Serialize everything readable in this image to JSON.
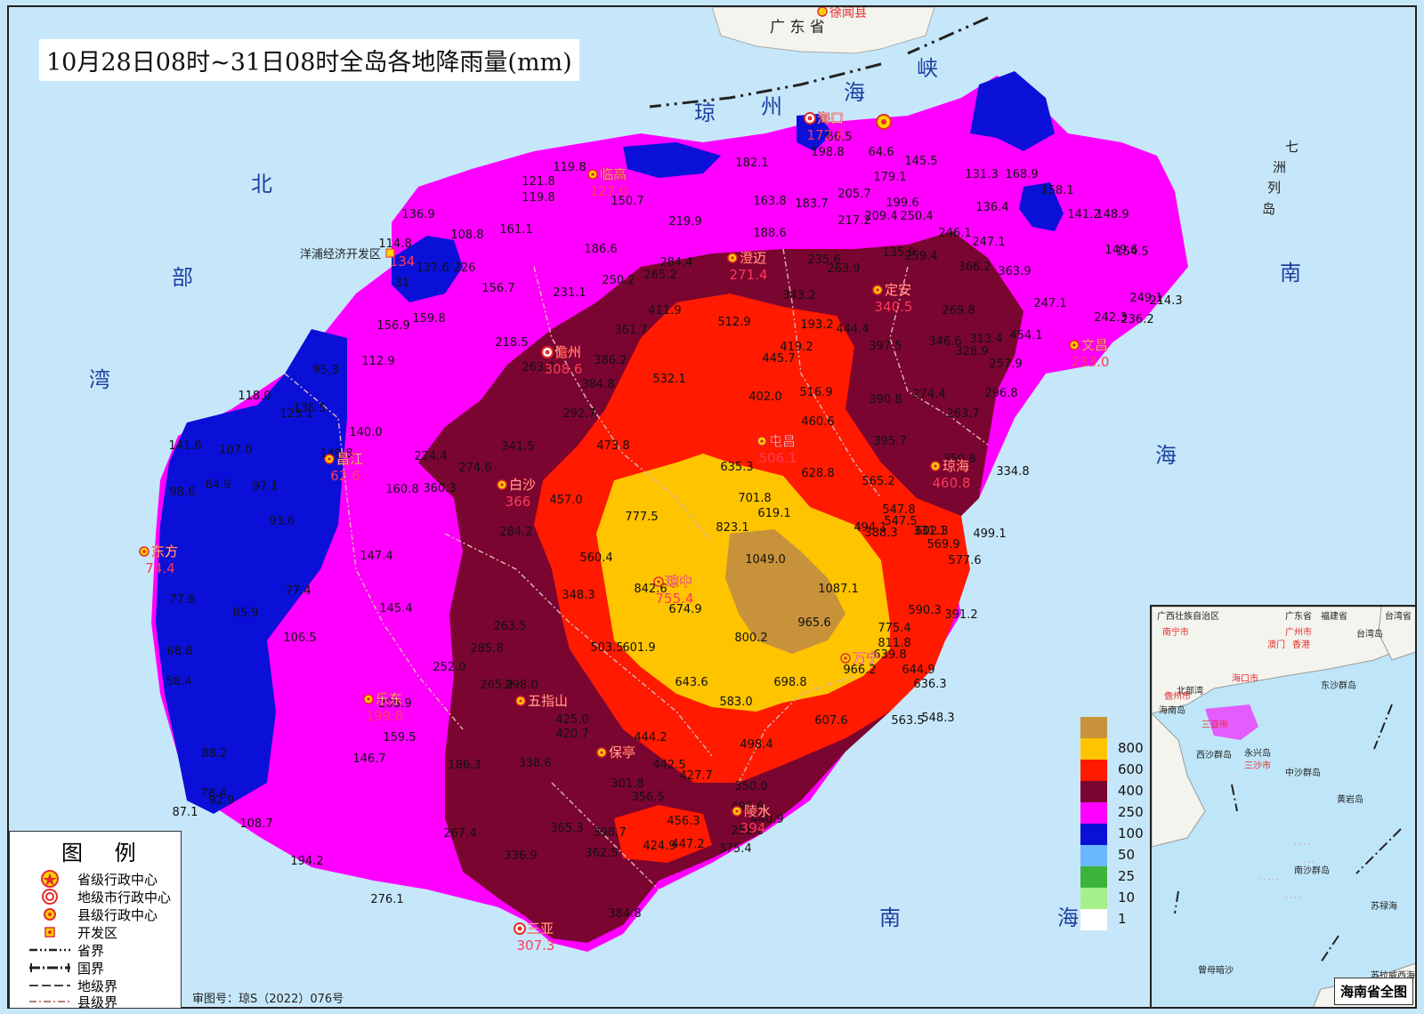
{
  "title": "10月28日08时~31日08时全岛各地降雨量(mm)",
  "approval": "审图号：琼S（2022）076号",
  "sea_labels": {
    "strait": [
      "琼",
      "州",
      "海",
      "峡"
    ],
    "gulf": [
      "北",
      "部",
      "湾"
    ],
    "south_sea": [
      "南",
      "海"
    ],
    "east_sea": [
      "南",
      "海"
    ],
    "islands": [
      "七",
      "洲",
      "列",
      "岛"
    ],
    "guangdong": "广 东 省",
    "xuwen": "徐闻县"
  },
  "cities": [
    {
      "name": "海口",
      "rain": "172.6"
    },
    {
      "name": "临高",
      "rain": "127.0"
    },
    {
      "name": "澄迈",
      "rain": "271.4"
    },
    {
      "name": "定安",
      "rain": "340.5"
    },
    {
      "name": "文昌",
      "rain": "233.0"
    },
    {
      "name": "儋州",
      "rain": "308.6"
    },
    {
      "name": "屯昌",
      "rain": "506.1"
    },
    {
      "name": "琼海",
      "rain": "460.8"
    },
    {
      "name": "白沙",
      "rain": "366"
    },
    {
      "name": "昌江",
      "rain": "62.6"
    },
    {
      "name": "东方",
      "rain": "74.4"
    },
    {
      "name": "琼中",
      "rain": "755.4"
    },
    {
      "name": "万宁",
      "rain": ""
    },
    {
      "name": "乐东",
      "rain": "199.8"
    },
    {
      "name": "五指山",
      "rain": ""
    },
    {
      "name": "保亭",
      "rain": ""
    },
    {
      "name": "陵水",
      "rain": "394"
    },
    {
      "name": "三亚",
      "rain": "307.3"
    },
    {
      "name": "洋浦经济开发区",
      "rain": "134"
    }
  ],
  "stations": [
    {
      "v": "119.8"
    },
    {
      "v": "121.8"
    },
    {
      "v": "119.8"
    },
    {
      "v": "150.7"
    },
    {
      "v": "182.1"
    },
    {
      "v": "198.8"
    },
    {
      "v": "66.5"
    },
    {
      "v": "64.6"
    },
    {
      "v": "145.5"
    },
    {
      "v": "131.3"
    },
    {
      "v": "168.9"
    },
    {
      "v": "158.1"
    },
    {
      "v": "141.2"
    },
    {
      "v": "148.9"
    },
    {
      "v": "179.1"
    },
    {
      "v": "205.7"
    },
    {
      "v": "199.6"
    },
    {
      "v": "136.4"
    },
    {
      "v": "209.4"
    },
    {
      "v": "250.4"
    },
    {
      "v": "217.2"
    },
    {
      "v": "183.7"
    },
    {
      "v": "163.8"
    },
    {
      "v": "219.9"
    },
    {
      "v": "188.6"
    },
    {
      "v": "136.9"
    },
    {
      "v": "108.8"
    },
    {
      "v": "161.1"
    },
    {
      "v": "186.6"
    },
    {
      "v": "114.8"
    },
    {
      "v": "137.6"
    },
    {
      "v": "226"
    },
    {
      "v": "156.7"
    },
    {
      "v": "231.1"
    },
    {
      "v": "250.2"
    },
    {
      "v": "265.2"
    },
    {
      "v": "284.4"
    },
    {
      "v": "235.6"
    },
    {
      "v": "263.9"
    },
    {
      "v": "135.9"
    },
    {
      "v": "259.4"
    },
    {
      "v": "246.1"
    },
    {
      "v": "247.1"
    },
    {
      "v": "366.2"
    },
    {
      "v": "363.9"
    },
    {
      "v": "149.6"
    },
    {
      "v": "154.5"
    },
    {
      "v": "249.1"
    },
    {
      "v": "214.3"
    },
    {
      "v": "236.2"
    },
    {
      "v": "242.3"
    },
    {
      "v": "343.2"
    },
    {
      "v": "411.9"
    },
    {
      "v": "512.9"
    },
    {
      "v": "193.2"
    },
    {
      "v": "444.4"
    },
    {
      "v": "397.5"
    },
    {
      "v": "269.8"
    },
    {
      "v": "346.6"
    },
    {
      "v": "328.9"
    },
    {
      "v": "313.4"
    },
    {
      "v": "454.1"
    },
    {
      "v": "257.9"
    },
    {
      "v": "247.1"
    },
    {
      "v": "156.9"
    },
    {
      "v": "159.8"
    },
    {
      "v": "218.5"
    },
    {
      "v": "361.7"
    },
    {
      "v": "419.2"
    },
    {
      "v": "445.7"
    },
    {
      "v": "112.9"
    },
    {
      "v": "95.3"
    },
    {
      "v": "263.8"
    },
    {
      "v": "386.2"
    },
    {
      "v": "384.8"
    },
    {
      "v": "532.1"
    },
    {
      "v": "402.0"
    },
    {
      "v": "516.9"
    },
    {
      "v": "390.8"
    },
    {
      "v": "274.4"
    },
    {
      "v": "296.8"
    },
    {
      "v": "263.7"
    },
    {
      "v": "118.0"
    },
    {
      "v": "135.5"
    },
    {
      "v": "123.1"
    },
    {
      "v": "292.7"
    },
    {
      "v": "460.6"
    },
    {
      "v": "395.7"
    },
    {
      "v": "140.0"
    },
    {
      "v": "141.6"
    },
    {
      "v": "107.0"
    },
    {
      "v": "149.8"
    },
    {
      "v": "341.5"
    },
    {
      "v": "473.8"
    },
    {
      "v": "224.4"
    },
    {
      "v": "274.6"
    },
    {
      "v": "635.3"
    },
    {
      "v": "628.8"
    },
    {
      "v": "565.2"
    },
    {
      "v": "350.8"
    },
    {
      "v": "334.8"
    },
    {
      "v": "98.6"
    },
    {
      "v": "64.9"
    },
    {
      "v": "97.1"
    },
    {
      "v": "160.8"
    },
    {
      "v": "360.3"
    },
    {
      "v": "457.0"
    },
    {
      "v": "701.8"
    },
    {
      "v": "619.1"
    },
    {
      "v": "547.8"
    },
    {
      "v": "388.3"
    },
    {
      "v": "331.1"
    },
    {
      "v": "93.6"
    },
    {
      "v": "777.5"
    },
    {
      "v": "823.1"
    },
    {
      "v": "494.1"
    },
    {
      "v": "547.5"
    },
    {
      "v": "602.3"
    },
    {
      "v": "499.1"
    },
    {
      "v": "284.2"
    },
    {
      "v": "569.9"
    },
    {
      "v": "147.4"
    },
    {
      "v": "560.4"
    },
    {
      "v": "1049.0"
    },
    {
      "v": "577.6"
    },
    {
      "v": "77.4"
    },
    {
      "v": "842.6"
    },
    {
      "v": "348.3"
    },
    {
      "v": "1087.1"
    },
    {
      "v": "77.8"
    },
    {
      "v": "85.9"
    },
    {
      "v": "145.4"
    },
    {
      "v": "674.9"
    },
    {
      "v": "590.3"
    },
    {
      "v": "391.2"
    },
    {
      "v": "263.5"
    },
    {
      "v": "965.6"
    },
    {
      "v": "775.4"
    },
    {
      "v": "106.5"
    },
    {
      "v": "285.8"
    },
    {
      "v": "503.5"
    },
    {
      "v": "601.9"
    },
    {
      "v": "800.2"
    },
    {
      "v": "811.8"
    },
    {
      "v": "68.8"
    },
    {
      "v": "639.8"
    },
    {
      "v": "252.0"
    },
    {
      "v": "966.2"
    },
    {
      "v": "644.9"
    },
    {
      "v": "58.4"
    },
    {
      "v": "265.9"
    },
    {
      "v": "298.0"
    },
    {
      "v": "643.6"
    },
    {
      "v": "698.8"
    },
    {
      "v": "636.3"
    },
    {
      "v": "208.9"
    },
    {
      "v": "583.0"
    },
    {
      "v": "607.6"
    },
    {
      "v": "563.5"
    },
    {
      "v": "548.3"
    },
    {
      "v": "159.5"
    },
    {
      "v": "425.0"
    },
    {
      "v": "420.7"
    },
    {
      "v": "444.2"
    },
    {
      "v": "498.4"
    },
    {
      "v": "88.2"
    },
    {
      "v": "146.7"
    },
    {
      "v": "186.3"
    },
    {
      "v": "338.6"
    },
    {
      "v": "442.5"
    },
    {
      "v": "427.7"
    },
    {
      "v": "301.8"
    },
    {
      "v": "350.0"
    },
    {
      "v": "78.4"
    },
    {
      "v": "92.9"
    },
    {
      "v": "356.5"
    },
    {
      "v": "87.1"
    },
    {
      "v": "108.7"
    },
    {
      "v": "496.6"
    },
    {
      "v": "440.9"
    },
    {
      "v": "456.3"
    },
    {
      "v": "258.0"
    },
    {
      "v": "267.4"
    },
    {
      "v": "365.3"
    },
    {
      "v": "398.7"
    },
    {
      "v": "424.9"
    },
    {
      "v": "447.2"
    },
    {
      "v": "375.4"
    },
    {
      "v": "194.2"
    },
    {
      "v": "336.9"
    },
    {
      "v": "362.5"
    },
    {
      "v": "276.1"
    },
    {
      "v": "384.8"
    },
    {
      "v": "31"
    }
  ],
  "legend": {
    "title": "图 例",
    "items": [
      {
        "label": "省级行政中心",
        "symbol": "star-circle-icon"
      },
      {
        "label": "地级市行政中心",
        "symbol": "double-circle-icon"
      },
      {
        "label": "县级行政中心",
        "symbol": "dot-circle-icon"
      },
      {
        "label": "开发区",
        "symbol": "square-dot-icon"
      },
      {
        "label": "省界",
        "symbol": "dash-dot-dot-line"
      },
      {
        "label": "国界",
        "symbol": "border-line"
      },
      {
        "label": "地级界",
        "symbol": "dash-line"
      },
      {
        "label": "县级界",
        "symbol": "dash-dot-line"
      }
    ]
  },
  "color_scale": [
    {
      "label": "",
      "color": "#c8923a"
    },
    {
      "label": "800",
      "color": "#ffc400"
    },
    {
      "label": "600",
      "color": "#ff1a00"
    },
    {
      "label": "400",
      "color": "#7a0530"
    },
    {
      "label": "250",
      "color": "#ff00ff"
    },
    {
      "label": "100",
      "color": "#0a10d8"
    },
    {
      "label": "50",
      "color": "#6cb8ff"
    },
    {
      "label": "25",
      "color": "#3cb43c"
    },
    {
      "label": "10",
      "color": "#a6f08c"
    },
    {
      "label": "1",
      "color": "#ffffff"
    }
  ],
  "inset": {
    "title": "海南省全图",
    "places": [
      {
        "name": "广西壮族自治区"
      },
      {
        "name": "广东省"
      },
      {
        "name": "福建省"
      },
      {
        "name": "台湾省"
      },
      {
        "name": "南宁市"
      },
      {
        "name": "广州市"
      },
      {
        "name": "澳门"
      },
      {
        "name": "香港"
      },
      {
        "name": "台湾岛"
      },
      {
        "name": "北部湾"
      },
      {
        "name": "海口市"
      },
      {
        "name": "东沙群岛"
      },
      {
        "name": "儋州市"
      },
      {
        "name": "海南岛"
      },
      {
        "name": "三亚市"
      },
      {
        "name": "西沙群岛"
      },
      {
        "name": "永兴岛"
      },
      {
        "name": "三沙市"
      },
      {
        "name": "中沙群岛"
      },
      {
        "name": "黄岩岛"
      },
      {
        "name": "南沙群岛"
      },
      {
        "name": "苏禄海"
      },
      {
        "name": "曾母暗沙"
      },
      {
        "name": "苏拉威西海"
      }
    ]
  }
}
